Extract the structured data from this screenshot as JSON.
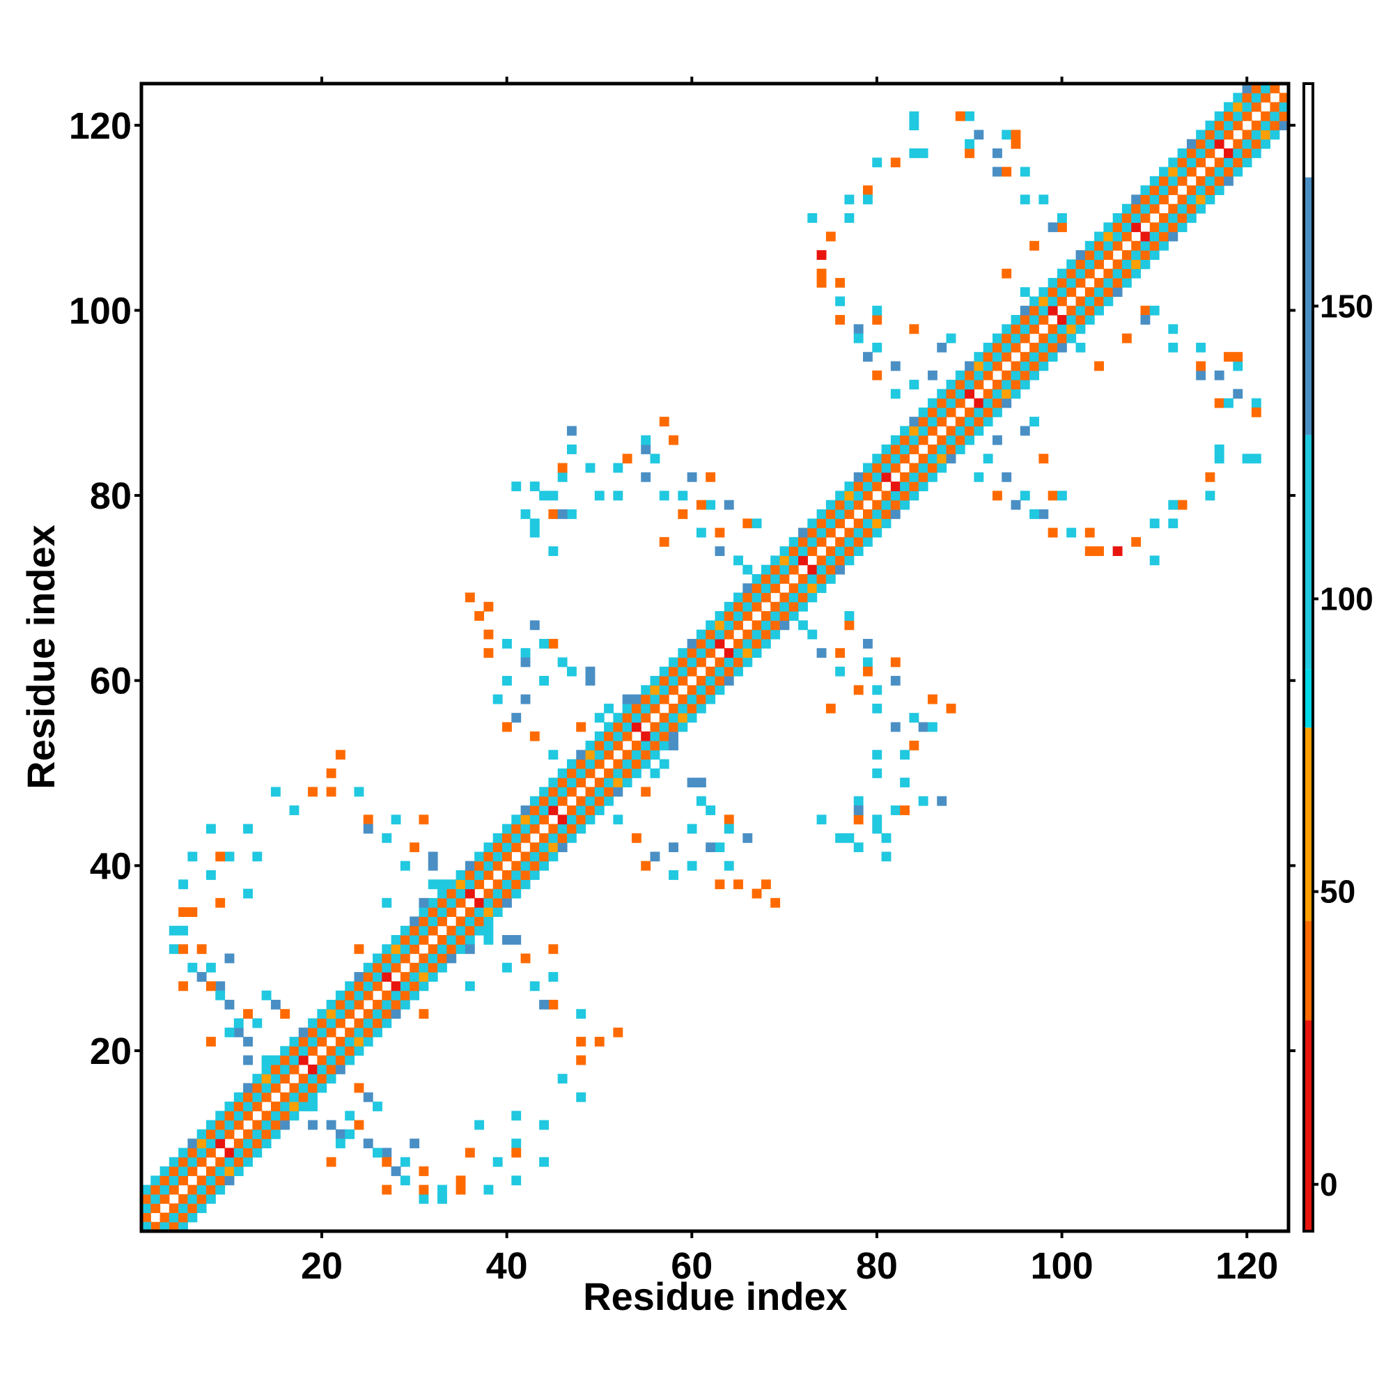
{
  "chart_data": {
    "type": "heatmap",
    "title": "",
    "xlabel": "Residue index",
    "ylabel": "Residue index",
    "xlim": [
      1,
      124
    ],
    "ylim": [
      1,
      124
    ],
    "x_ticks": [
      20,
      40,
      60,
      80,
      100,
      120
    ],
    "y_ticks": [
      20,
      40,
      60,
      80,
      100,
      120
    ],
    "grid": false,
    "colorbar": {
      "position": "right",
      "range": [
        -8,
        188
      ],
      "ticks": [
        0,
        50,
        100,
        150
      ],
      "stops": [
        {
          "from": -8,
          "to": 28,
          "color": "#e8150e"
        },
        {
          "from": 28,
          "to": 45,
          "color": "#ff6a00"
        },
        {
          "from": 45,
          "to": 78,
          "color": "#ffa000"
        },
        {
          "from": 78,
          "to": 88,
          "color": "#00d8e8"
        },
        {
          "from": 88,
          "to": 128,
          "color": "#20c8e0"
        },
        {
          "from": 128,
          "to": 172,
          "color": "#4a8fc4"
        },
        {
          "from": 172,
          "to": 188,
          "color": "#ffffff"
        }
      ]
    },
    "palette": {
      "red": "#e8150e",
      "orange": "#ff6a00",
      "amber": "#ffa000",
      "cyan": "#10d4e8",
      "steelblue": "#4a8fc4"
    },
    "band_pattern": {
      "description_values": "cell value by |i-j| offset along the diagonal",
      "offsets": [
        {
          "offset": 1,
          "value": 40
        },
        {
          "offset": 2,
          "value": 95
        },
        {
          "offset": 3,
          "value": 40
        },
        {
          "offset": 4,
          "value": 95
        }
      ]
    },
    "diagonal_blocks": [
      {
        "start": 1,
        "end": 21
      },
      {
        "start": 21,
        "end": 37
      },
      {
        "start": 36,
        "end": 55
      },
      {
        "start": 53,
        "end": 72
      },
      {
        "start": 70,
        "end": 91
      },
      {
        "start": 89,
        "end": 105
      },
      {
        "start": 103,
        "end": 124
      }
    ],
    "off_diagonal_cells": [
      [
        8,
        21,
        0,
        40
      ],
      [
        11,
        22,
        0,
        150
      ],
      [
        13,
        23,
        0,
        95
      ],
      [
        15,
        25,
        0,
        150
      ],
      [
        12,
        24,
        0,
        40
      ],
      [
        14,
        26,
        0,
        95
      ],
      [
        9,
        27,
        0,
        150
      ],
      [
        8,
        29,
        0,
        95
      ],
      [
        10,
        30,
        0,
        150
      ],
      [
        7,
        31,
        0,
        40
      ],
      [
        5,
        33,
        0,
        95
      ],
      [
        6,
        35,
        0,
        40
      ],
      [
        4,
        31,
        0,
        95
      ],
      [
        5,
        27,
        0,
        40
      ],
      [
        10,
        22,
        0,
        95
      ],
      [
        12,
        19,
        0,
        150
      ],
      [
        16,
        24,
        0,
        40
      ],
      [
        18,
        20,
        0,
        95
      ],
      [
        20,
        23,
        0,
        150
      ],
      [
        9,
        36,
        0,
        40
      ],
      [
        5,
        38,
        0,
        95
      ],
      [
        6,
        41,
        0,
        95
      ],
      [
        10,
        41,
        0,
        95
      ],
      [
        13,
        41,
        0,
        95
      ],
      [
        8,
        44,
        0,
        95
      ],
      [
        12,
        44,
        0,
        95
      ],
      [
        15,
        48,
        0,
        95
      ],
      [
        19,
        48,
        0,
        40
      ],
      [
        22,
        52,
        0,
        40
      ],
      [
        24,
        48,
        0,
        95
      ],
      [
        25,
        45,
        0,
        40
      ],
      [
        28,
        45,
        0,
        95
      ],
      [
        30,
        42,
        0,
        40
      ],
      [
        31,
        45,
        0,
        40
      ],
      [
        29,
        40,
        0,
        95
      ],
      [
        32,
        41,
        0,
        150
      ],
      [
        32,
        38,
        0,
        95
      ],
      [
        31,
        36,
        0,
        150
      ],
      [
        25,
        44,
        0,
        150
      ],
      [
        27,
        43,
        0,
        95
      ],
      [
        40,
        55,
        0,
        40
      ],
      [
        42,
        58,
        0,
        150
      ],
      [
        44,
        60,
        0,
        95
      ],
      [
        46,
        62,
        0,
        95
      ],
      [
        49,
        60,
        0,
        150
      ],
      [
        51,
        57,
        0,
        95
      ],
      [
        48,
        55,
        0,
        40
      ],
      [
        53,
        58,
        0,
        150
      ],
      [
        38,
        65,
        0,
        40
      ],
      [
        40,
        64,
        0,
        95
      ],
      [
        43,
        66,
        0,
        150
      ],
      [
        45,
        64,
        0,
        40
      ],
      [
        47,
        61,
        0,
        95
      ],
      [
        49,
        61,
        0,
        150
      ],
      [
        38,
        68,
        0,
        40
      ],
      [
        42,
        63,
        0,
        95
      ],
      [
        50,
        56,
        0,
        95
      ],
      [
        52,
        53,
        0,
        40
      ],
      [
        56,
        84,
        0,
        95
      ],
      [
        58,
        86,
        0,
        40
      ],
      [
        60,
        82,
        0,
        150
      ],
      [
        62,
        79,
        0,
        95
      ],
      [
        64,
        79,
        0,
        150
      ],
      [
        66,
        77,
        0,
        40
      ],
      [
        43,
        81,
        0,
        95
      ],
      [
        46,
        82,
        0,
        95
      ],
      [
        49,
        83,
        0,
        95
      ],
      [
        47,
        78,
        0,
        95
      ],
      [
        53,
        84,
        0,
        40
      ],
      [
        55,
        85,
        0,
        150
      ],
      [
        57,
        88,
        0,
        40
      ],
      [
        59,
        80,
        0,
        95
      ],
      [
        61,
        79,
        0,
        40
      ],
      [
        63,
        76,
        0,
        40
      ],
      [
        65,
        73,
        0,
        95
      ],
      [
        67,
        77,
        0,
        95
      ],
      [
        43,
        77,
        0,
        95
      ],
      [
        45,
        78,
        0,
        40
      ],
      [
        44,
        80,
        0,
        95
      ],
      [
        74,
        104,
        0,
        40
      ],
      [
        76,
        101,
        0,
        95
      ],
      [
        78,
        98,
        0,
        150
      ],
      [
        80,
        96,
        0,
        95
      ],
      [
        82,
        94,
        0,
        150
      ],
      [
        84,
        92,
        0,
        95
      ],
      [
        77,
        112,
        0,
        95
      ],
      [
        79,
        113,
        0,
        40
      ],
      [
        82,
        116,
        0,
        40
      ],
      [
        84,
        117,
        0,
        95
      ],
      [
        73,
        110,
        0,
        95
      ],
      [
        75,
        108,
        0,
        40
      ],
      [
        76,
        103,
        0,
        40
      ],
      [
        80,
        99,
        0,
        40
      ],
      [
        86,
        93,
        0,
        150
      ],
      [
        88,
        97,
        0,
        95
      ],
      [
        84,
        121,
        0,
        95
      ],
      [
        90,
        121,
        0,
        95
      ],
      [
        93,
        115,
        0,
        150
      ],
      [
        95,
        118,
        0,
        40
      ],
      [
        98,
        112,
        0,
        95
      ],
      [
        100,
        109,
        0,
        40
      ],
      [
        94,
        119,
        0,
        95
      ],
      [
        90,
        117,
        0,
        40
      ],
      [
        91,
        119,
        0,
        150
      ],
      [
        96,
        115,
        0,
        95
      ],
      [
        89,
        86,
        0,
        150
      ],
      [
        91,
        82,
        0,
        95
      ],
      [
        93,
        80,
        0,
        40
      ],
      [
        95,
        79,
        0,
        150
      ],
      [
        97,
        78,
        0,
        95
      ],
      [
        99,
        76,
        0,
        40
      ],
      [
        103,
        74,
        0,
        40
      ],
      [
        106,
        74,
        0,
        0
      ],
      [
        110,
        77,
        0,
        95
      ],
      [
        112,
        79,
        0,
        95
      ],
      [
        116,
        80,
        0,
        95
      ],
      [
        117,
        85,
        0,
        95
      ],
      [
        120,
        84,
        0,
        95
      ],
      [
        104,
        94,
        0,
        40
      ],
      [
        107,
        97,
        0,
        40
      ],
      [
        109,
        99,
        0,
        150
      ],
      [
        112,
        96,
        0,
        95
      ],
      [
        115,
        94,
        0,
        40
      ],
      [
        118,
        90,
        0,
        95
      ],
      [
        121,
        89,
        0,
        40
      ],
      [
        117,
        93,
        0,
        150
      ],
      [
        119,
        95,
        0,
        40
      ],
      [
        110,
        100,
        0,
        95
      ],
      [
        102,
        96,
        0,
        95
      ],
      [
        98,
        84,
        0,
        40
      ],
      [
        100,
        80,
        0,
        95
      ],
      [
        96,
        87,
        0,
        150
      ],
      [
        19,
        14,
        0,
        95
      ],
      [
        21,
        12,
        0,
        150
      ],
      [
        23,
        11,
        0,
        95
      ],
      [
        25,
        10,
        0,
        150
      ],
      [
        27,
        8,
        0,
        40
      ],
      [
        29,
        6,
        0,
        95
      ],
      [
        31,
        5,
        0,
        40
      ],
      [
        33,
        4,
        0,
        95
      ],
      [
        35,
        5,
        0,
        40
      ],
      [
        24,
        12,
        0,
        40
      ],
      [
        26,
        9,
        0,
        95
      ],
      [
        28,
        7,
        0,
        150
      ],
      [
        39,
        8,
        0,
        95
      ],
      [
        37,
        12,
        0,
        95
      ],
      [
        41,
        9,
        0,
        40
      ],
      [
        46,
        17,
        0,
        95
      ],
      [
        48,
        21,
        0,
        40
      ],
      [
        50,
        21,
        0,
        40
      ],
      [
        44,
        25,
        0,
        95
      ],
      [
        42,
        30,
        0,
        95
      ],
      [
        40,
        32,
        0,
        150
      ],
      [
        38,
        33,
        0,
        95
      ],
      [
        36,
        32,
        0,
        95
      ],
      [
        34,
        30,
        0,
        40
      ],
      [
        32,
        29,
        0,
        150
      ],
      [
        36,
        27,
        0,
        95
      ],
      [
        31,
        24,
        0,
        40
      ],
      [
        50,
        47,
        0,
        150
      ],
      [
        52,
        45,
        0,
        95
      ],
      [
        54,
        43,
        0,
        40
      ],
      [
        56,
        41,
        0,
        150
      ],
      [
        58,
        39,
        0,
        95
      ],
      [
        60,
        40,
        0,
        95
      ],
      [
        63,
        38,
        0,
        40
      ],
      [
        65,
        38,
        0,
        95
      ],
      [
        67,
        37,
        0,
        40
      ],
      [
        62,
        42,
        0,
        150
      ],
      [
        64,
        44,
        0,
        95
      ],
      [
        69,
        36,
        0,
        40
      ],
      [
        74,
        45,
        0,
        95
      ],
      [
        76,
        43,
        0,
        95
      ],
      [
        78,
        42,
        0,
        95
      ],
      [
        81,
        41,
        0,
        95
      ],
      [
        78,
        46,
        0,
        150
      ],
      [
        80,
        45,
        0,
        95
      ],
      [
        83,
        46,
        0,
        40
      ],
      [
        85,
        47,
        0,
        95
      ],
      [
        87,
        47,
        0,
        150
      ],
      [
        72,
        66,
        0,
        95
      ],
      [
        74,
        63,
        0,
        150
      ],
      [
        76,
        61,
        0,
        95
      ],
      [
        78,
        59,
        0,
        40
      ],
      [
        80,
        57,
        0,
        95
      ],
      [
        82,
        55,
        0,
        150
      ],
      [
        84,
        56,
        0,
        40
      ],
      [
        86,
        55,
        0,
        95
      ],
      [
        75,
        57,
        0,
        40
      ],
      [
        80,
        52,
        0,
        95
      ],
      [
        83,
        52,
        0,
        95
      ],
      [
        83,
        49,
        0,
        40
      ],
      [
        80,
        50,
        0,
        95
      ],
      [
        82,
        62,
        0,
        40
      ]
    ]
  }
}
